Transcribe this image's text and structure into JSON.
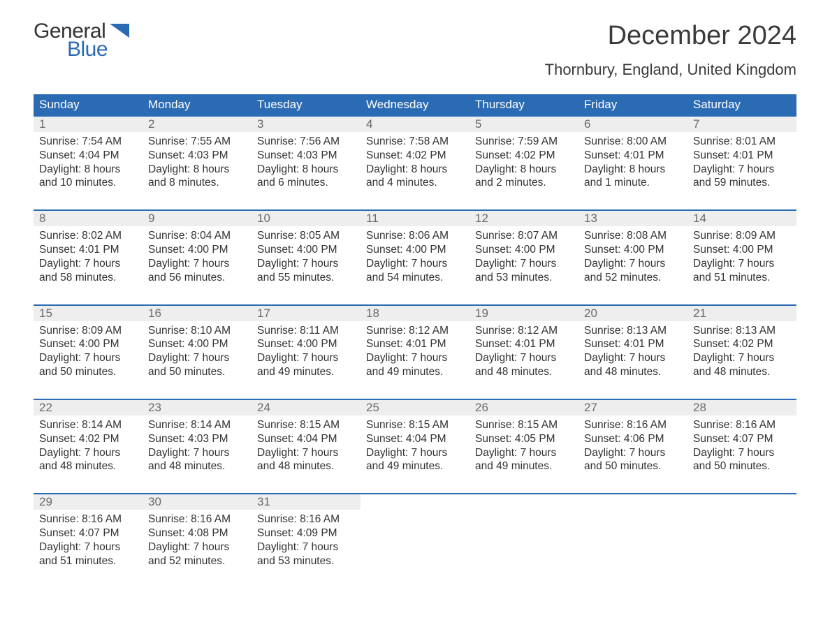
{
  "logo": {
    "general": "General",
    "blue": "Blue",
    "flag_color": "#2b6bb3"
  },
  "title": "December 2024",
  "location": "Thornbury, England, United Kingdom",
  "colors": {
    "header_bg": "#2b6bb3",
    "header_text": "#ffffff",
    "daynum_bg": "#eeeeee",
    "daynum_text": "#6a6a6a",
    "body_text": "#333333",
    "week_border": "#2b6bb3",
    "page_bg": "#ffffff"
  },
  "day_names": [
    "Sunday",
    "Monday",
    "Tuesday",
    "Wednesday",
    "Thursday",
    "Friday",
    "Saturday"
  ],
  "weeks": [
    [
      {
        "n": "1",
        "sunrise": "7:54 AM",
        "sunset": "4:04 PM",
        "dl1": "Daylight: 8 hours",
        "dl2": "and 10 minutes."
      },
      {
        "n": "2",
        "sunrise": "7:55 AM",
        "sunset": "4:03 PM",
        "dl1": "Daylight: 8 hours",
        "dl2": "and 8 minutes."
      },
      {
        "n": "3",
        "sunrise": "7:56 AM",
        "sunset": "4:03 PM",
        "dl1": "Daylight: 8 hours",
        "dl2": "and 6 minutes."
      },
      {
        "n": "4",
        "sunrise": "7:58 AM",
        "sunset": "4:02 PM",
        "dl1": "Daylight: 8 hours",
        "dl2": "and 4 minutes."
      },
      {
        "n": "5",
        "sunrise": "7:59 AM",
        "sunset": "4:02 PM",
        "dl1": "Daylight: 8 hours",
        "dl2": "and 2 minutes."
      },
      {
        "n": "6",
        "sunrise": "8:00 AM",
        "sunset": "4:01 PM",
        "dl1": "Daylight: 8 hours",
        "dl2": "and 1 minute."
      },
      {
        "n": "7",
        "sunrise": "8:01 AM",
        "sunset": "4:01 PM",
        "dl1": "Daylight: 7 hours",
        "dl2": "and 59 minutes."
      }
    ],
    [
      {
        "n": "8",
        "sunrise": "8:02 AM",
        "sunset": "4:01 PM",
        "dl1": "Daylight: 7 hours",
        "dl2": "and 58 minutes."
      },
      {
        "n": "9",
        "sunrise": "8:04 AM",
        "sunset": "4:00 PM",
        "dl1": "Daylight: 7 hours",
        "dl2": "and 56 minutes."
      },
      {
        "n": "10",
        "sunrise": "8:05 AM",
        "sunset": "4:00 PM",
        "dl1": "Daylight: 7 hours",
        "dl2": "and 55 minutes."
      },
      {
        "n": "11",
        "sunrise": "8:06 AM",
        "sunset": "4:00 PM",
        "dl1": "Daylight: 7 hours",
        "dl2": "and 54 minutes."
      },
      {
        "n": "12",
        "sunrise": "8:07 AM",
        "sunset": "4:00 PM",
        "dl1": "Daylight: 7 hours",
        "dl2": "and 53 minutes."
      },
      {
        "n": "13",
        "sunrise": "8:08 AM",
        "sunset": "4:00 PM",
        "dl1": "Daylight: 7 hours",
        "dl2": "and 52 minutes."
      },
      {
        "n": "14",
        "sunrise": "8:09 AM",
        "sunset": "4:00 PM",
        "dl1": "Daylight: 7 hours",
        "dl2": "and 51 minutes."
      }
    ],
    [
      {
        "n": "15",
        "sunrise": "8:09 AM",
        "sunset": "4:00 PM",
        "dl1": "Daylight: 7 hours",
        "dl2": "and 50 minutes."
      },
      {
        "n": "16",
        "sunrise": "8:10 AM",
        "sunset": "4:00 PM",
        "dl1": "Daylight: 7 hours",
        "dl2": "and 50 minutes."
      },
      {
        "n": "17",
        "sunrise": "8:11 AM",
        "sunset": "4:00 PM",
        "dl1": "Daylight: 7 hours",
        "dl2": "and 49 minutes."
      },
      {
        "n": "18",
        "sunrise": "8:12 AM",
        "sunset": "4:01 PM",
        "dl1": "Daylight: 7 hours",
        "dl2": "and 49 minutes."
      },
      {
        "n": "19",
        "sunrise": "8:12 AM",
        "sunset": "4:01 PM",
        "dl1": "Daylight: 7 hours",
        "dl2": "and 48 minutes."
      },
      {
        "n": "20",
        "sunrise": "8:13 AM",
        "sunset": "4:01 PM",
        "dl1": "Daylight: 7 hours",
        "dl2": "and 48 minutes."
      },
      {
        "n": "21",
        "sunrise": "8:13 AM",
        "sunset": "4:02 PM",
        "dl1": "Daylight: 7 hours",
        "dl2": "and 48 minutes."
      }
    ],
    [
      {
        "n": "22",
        "sunrise": "8:14 AM",
        "sunset": "4:02 PM",
        "dl1": "Daylight: 7 hours",
        "dl2": "and 48 minutes."
      },
      {
        "n": "23",
        "sunrise": "8:14 AM",
        "sunset": "4:03 PM",
        "dl1": "Daylight: 7 hours",
        "dl2": "and 48 minutes."
      },
      {
        "n": "24",
        "sunrise": "8:15 AM",
        "sunset": "4:04 PM",
        "dl1": "Daylight: 7 hours",
        "dl2": "and 48 minutes."
      },
      {
        "n": "25",
        "sunrise": "8:15 AM",
        "sunset": "4:04 PM",
        "dl1": "Daylight: 7 hours",
        "dl2": "and 49 minutes."
      },
      {
        "n": "26",
        "sunrise": "8:15 AM",
        "sunset": "4:05 PM",
        "dl1": "Daylight: 7 hours",
        "dl2": "and 49 minutes."
      },
      {
        "n": "27",
        "sunrise": "8:16 AM",
        "sunset": "4:06 PM",
        "dl1": "Daylight: 7 hours",
        "dl2": "and 50 minutes."
      },
      {
        "n": "28",
        "sunrise": "8:16 AM",
        "sunset": "4:07 PM",
        "dl1": "Daylight: 7 hours",
        "dl2": "and 50 minutes."
      }
    ],
    [
      {
        "n": "29",
        "sunrise": "8:16 AM",
        "sunset": "4:07 PM",
        "dl1": "Daylight: 7 hours",
        "dl2": "and 51 minutes."
      },
      {
        "n": "30",
        "sunrise": "8:16 AM",
        "sunset": "4:08 PM",
        "dl1": "Daylight: 7 hours",
        "dl2": "and 52 minutes."
      },
      {
        "n": "31",
        "sunrise": "8:16 AM",
        "sunset": "4:09 PM",
        "dl1": "Daylight: 7 hours",
        "dl2": "and 53 minutes."
      },
      null,
      null,
      null,
      null
    ]
  ],
  "labels": {
    "sunrise_prefix": "Sunrise: ",
    "sunset_prefix": "Sunset: "
  }
}
